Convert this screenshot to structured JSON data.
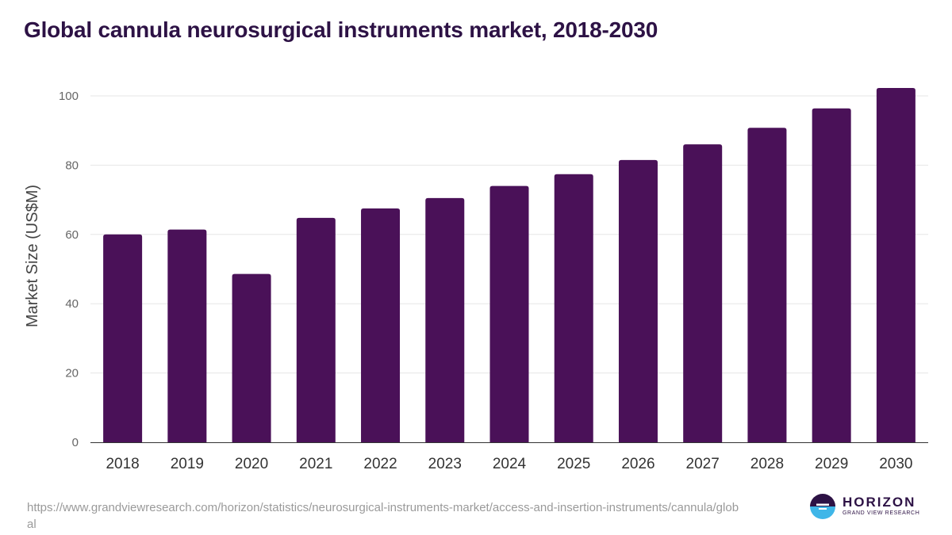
{
  "chart_data": {
    "type": "bar",
    "title": "Global cannula neurosurgical instruments market, 2018-2030",
    "ylabel": "Market Size (US$M)",
    "xlabel": "",
    "categories": [
      "2018",
      "2019",
      "2020",
      "2021",
      "2022",
      "2023",
      "2024",
      "2025",
      "2026",
      "2027",
      "2028",
      "2029",
      "2030"
    ],
    "values": [
      60.0,
      61.4,
      48.6,
      64.8,
      67.5,
      70.5,
      74.0,
      77.4,
      81.5,
      86.0,
      90.8,
      96.4,
      102.3
    ],
    "ylim": [
      0,
      105
    ],
    "yticks": [
      "0",
      "20",
      "40",
      "60",
      "80",
      "100"
    ],
    "grid": true,
    "legend": "none",
    "bar_color": "#4a1158"
  },
  "footer": {
    "source_url": "https://www.grandviewresearch.com/horizon/statistics/neurosurgical-instruments-market/access-and-insertion-instruments/cannula/global",
    "logo_name": "HORIZON",
    "logo_sub": "GRAND VIEW RESEARCH",
    "logo_colors": {
      "dark": "#2d1245",
      "light": "#3fb6e8"
    }
  }
}
